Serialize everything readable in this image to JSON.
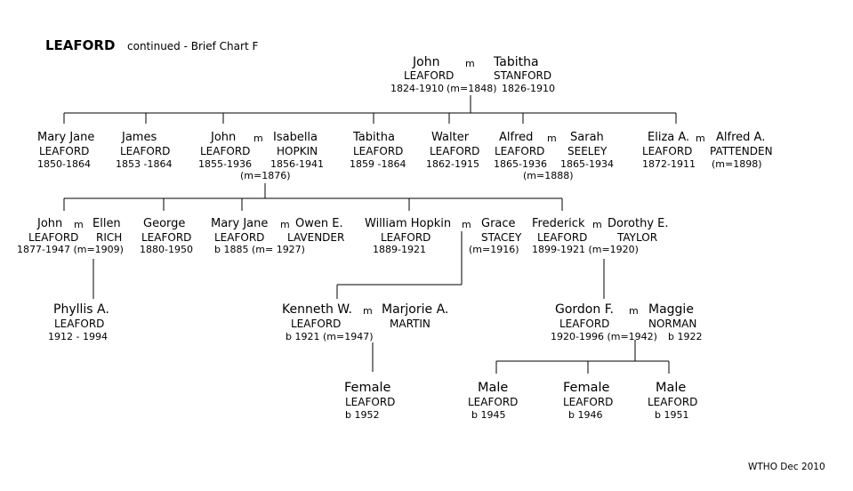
{
  "header": {
    "title": "LEAFORD",
    "subtitle": "continued  - Brief Chart F"
  },
  "gen1": {
    "john": {
      "given": "John",
      "surname": "LEAFORD",
      "dates": "1824-1910"
    },
    "tabitha": {
      "given": "Tabitha",
      "surname": "STANFORD",
      "dates": "1826-1910"
    },
    "marriage_mark": "m",
    "marriage_year": "(m=1848)"
  },
  "gen2": {
    "mary_jane": {
      "given": "Mary Jane",
      "surname": "LEAFORD",
      "dates": "1850-1864"
    },
    "james": {
      "given": "James",
      "surname": "LEAFORD",
      "dates": "1853 -1864"
    },
    "john": {
      "given": "John",
      "surname": "LEAFORD",
      "dates": "1855-1936"
    },
    "isabella": {
      "given": "Isabella",
      "surname": "HOPKIN",
      "dates": "1856-1941"
    },
    "john_marriage": "(m=1876)",
    "tabitha": {
      "given": "Tabitha",
      "surname": "LEAFORD",
      "dates": "1859 -1864"
    },
    "walter": {
      "given": "Walter",
      "surname": "LEAFORD",
      "dates": "1862-1915"
    },
    "alfred": {
      "given": "Alfred",
      "surname": "LEAFORD",
      "dates": "1865-1936"
    },
    "sarah": {
      "given": "Sarah",
      "surname": "SEELEY",
      "dates": "1865-1934"
    },
    "alfred_marriage": "(m=1888)",
    "eliza": {
      "given": "Eliza A.",
      "surname": "LEAFORD",
      "dates": "1872-1911"
    },
    "alfred_p": {
      "given": "Alfred A.",
      "surname": "PATTENDEN",
      "dates": "(m=1898)"
    },
    "marriage_mark": "m"
  },
  "gen3": {
    "john": {
      "given": "John",
      "surname": "LEAFORD",
      "dates": "1877-1947 (m=1909)"
    },
    "ellen": {
      "given": "Ellen",
      "surname": "RICH"
    },
    "george": {
      "given": "George",
      "surname": "LEAFORD",
      "dates": "1880-1950"
    },
    "mary_jane": {
      "given": "Mary Jane",
      "surname": "LEAFORD",
      "dates": "b 1885 (m= 1927)"
    },
    "owen": {
      "given": "Owen E.",
      "surname": "LAVENDER"
    },
    "william": {
      "given": "William  Hopkin",
      "surname": "LEAFORD",
      "dates": "1889-1921"
    },
    "grace": {
      "given": "Grace",
      "surname": "STACEY",
      "dates": "(m=1916)"
    },
    "frederick": {
      "given": "Frederick",
      "surname": "LEAFORD",
      "dates": "1899-1921 (m=1920)"
    },
    "dorothy": {
      "given": "Dorothy E.",
      "surname": "TAYLOR"
    },
    "marriage_mark": "m"
  },
  "gen4": {
    "phyllis": {
      "given": "Phyllis A.",
      "surname": "LEAFORD",
      "dates": "1912 - 1994"
    },
    "kenneth": {
      "given": "Kenneth W.",
      "surname": "LEAFORD",
      "dates": "b 1921 (m=1947)"
    },
    "marjorie": {
      "given": "Marjorie A.",
      "surname": "MARTIN"
    },
    "gordon": {
      "given": "Gordon F.",
      "surname": "LEAFORD",
      "dates": "1920-1996 (m=1942)"
    },
    "maggie": {
      "given": "Maggie",
      "surname": "NORMAN",
      "dates": "b 1922"
    },
    "marriage_mark": "m"
  },
  "gen5": {
    "female_k": {
      "given": "Female",
      "surname": "LEAFORD",
      "dates": "b 1952"
    },
    "male_1": {
      "given": "Male",
      "surname": "LEAFORD",
      "dates": "b 1945"
    },
    "female_g": {
      "given": "Female",
      "surname": "LEAFORD",
      "dates": "b 1946"
    },
    "male_2": {
      "given": "Male",
      "surname": "LEAFORD",
      "dates": "b 1951"
    }
  },
  "footer": {
    "credit": "WTHO  Dec 2010"
  }
}
